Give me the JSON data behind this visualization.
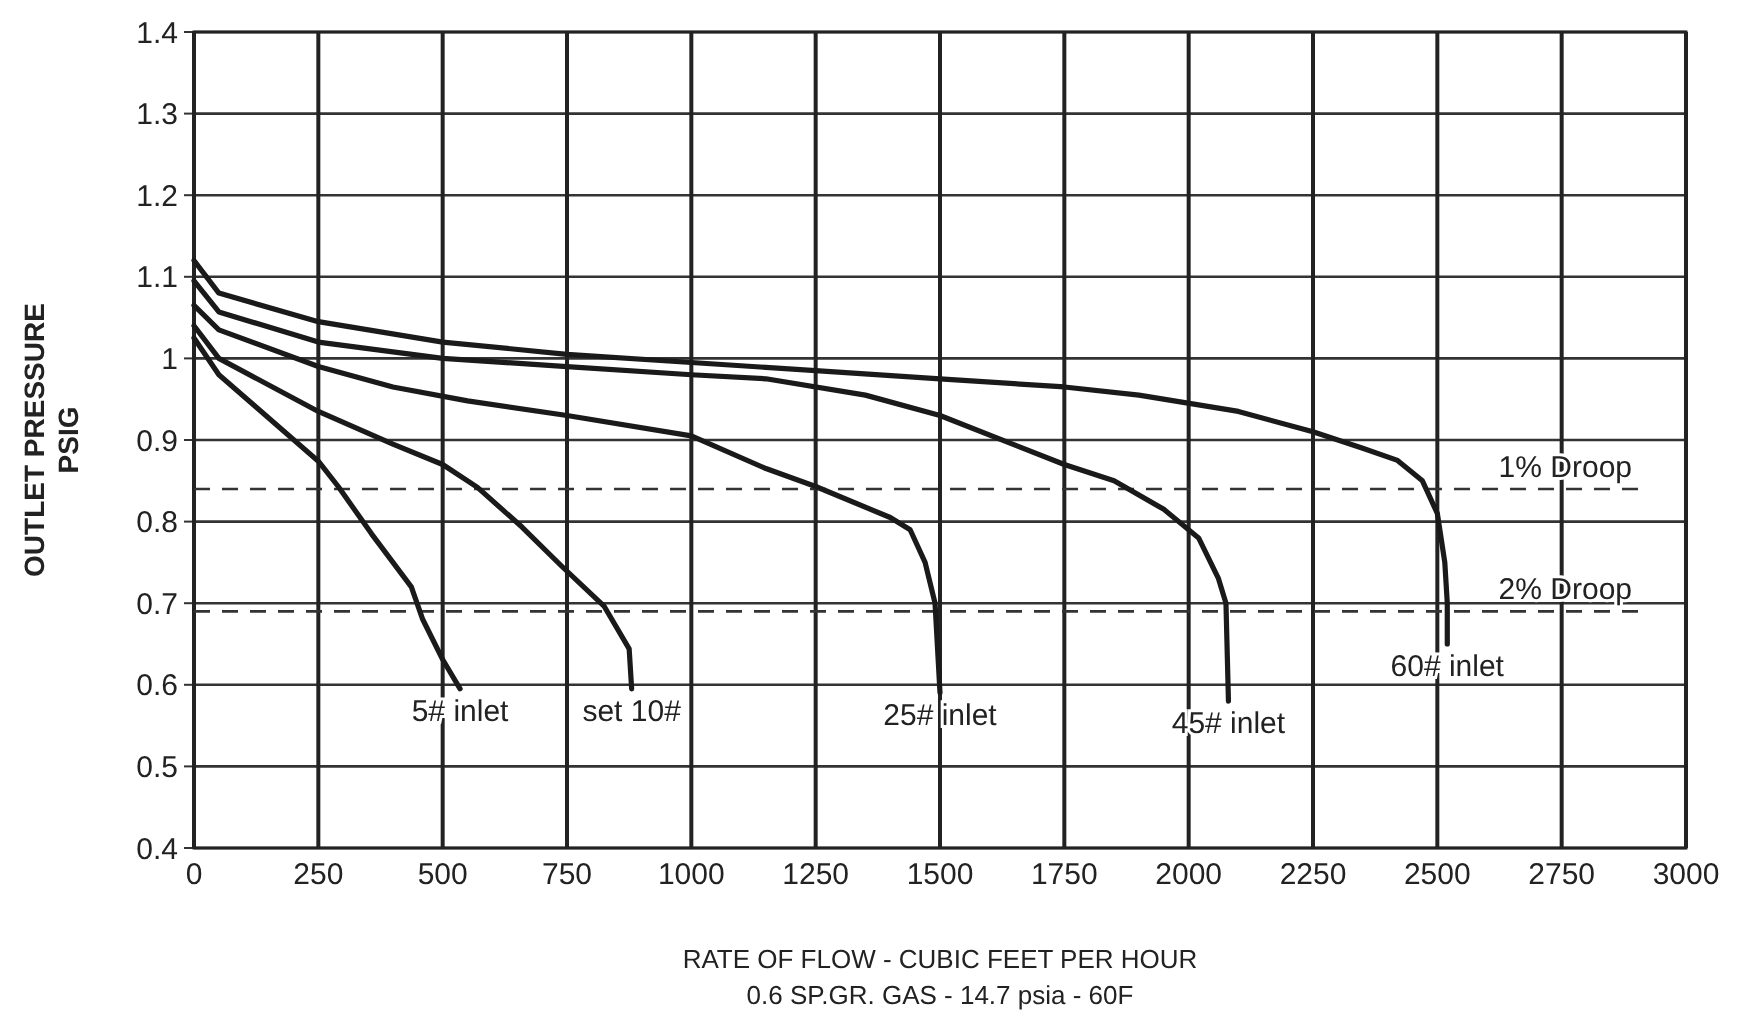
{
  "chart_data": {
    "type": "line",
    "xlabel": "RATE OF FLOW - CUBIC FEET PER HOUR",
    "ylabel": "OUTLET PRESSURE\nPSIG",
    "annotations": [
      "0.6 SP.GR. GAS - 14.7 psia - 60F"
    ],
    "xlim": [
      0,
      3000
    ],
    "ylim": [
      0.4,
      1.4
    ],
    "xticks": [
      0,
      250,
      500,
      750,
      1000,
      1250,
      1500,
      1750,
      2000,
      2250,
      2500,
      2750,
      3000
    ],
    "yticks": [
      0.4,
      0.5,
      0.6,
      0.7,
      0.8,
      0.9,
      1,
      1.1,
      1.2,
      1.3,
      1.4
    ],
    "grid": true,
    "marker": "none",
    "line_style": "solid",
    "ref_lines": [
      {
        "axis": "y",
        "value": 0.84,
        "label": "1% Droop",
        "line_style": "dashed",
        "color": "#333333"
      },
      {
        "axis": "y",
        "value": 0.69,
        "label": "2% Droop",
        "line_style": "dashed",
        "color": "#333333"
      }
    ],
    "series": [
      {
        "name": "5# inlet",
        "color": "#1a1a1a",
        "x": [
          0,
          50,
          250,
          290,
          357,
          437,
          460,
          500,
          535
        ],
        "values": [
          1.025,
          0.98,
          0.874,
          0.843,
          0.785,
          0.72,
          0.68,
          0.631,
          0.595
        ]
      },
      {
        "name": "set 10#",
        "color": "#1a1a1a",
        "x": [
          0,
          50,
          250,
          400,
          500,
          570,
          660,
          740,
          825,
          875,
          880
        ],
        "values": [
          1.04,
          1.0,
          0.935,
          0.895,
          0.87,
          0.842,
          0.793,
          0.745,
          0.696,
          0.644,
          0.595
        ]
      },
      {
        "name": "25# inlet",
        "color": "#1a1a1a",
        "x": [
          0,
          50,
          250,
          400,
          550,
          750,
          1000,
          1150,
          1250,
          1400,
          1440,
          1470,
          1490,
          1500
        ],
        "values": [
          1.065,
          1.035,
          0.99,
          0.965,
          0.948,
          0.93,
          0.905,
          0.865,
          0.843,
          0.805,
          0.79,
          0.75,
          0.7,
          0.59
        ]
      },
      {
        "name": "45# inlet",
        "color": "#1a1a1a",
        "x": [
          0,
          50,
          250,
          500,
          750,
          1000,
          1150,
          1350,
          1500,
          1750,
          1850,
          1950,
          2020,
          2060,
          2075,
          2080
        ],
        "values": [
          1.095,
          1.057,
          1.02,
          1.0,
          0.99,
          0.98,
          0.975,
          0.955,
          0.93,
          0.87,
          0.85,
          0.815,
          0.78,
          0.73,
          0.7,
          0.58
        ]
      },
      {
        "name": "60# inlet",
        "color": "#1a1a1a",
        "x": [
          0,
          50,
          250,
          500,
          750,
          1000,
          1250,
          1500,
          1750,
          1900,
          2100,
          2250,
          2350,
          2420,
          2470,
          2500,
          2515,
          2520,
          2520
        ],
        "values": [
          1.12,
          1.08,
          1.045,
          1.02,
          1.005,
          0.995,
          0.985,
          0.975,
          0.965,
          0.955,
          0.935,
          0.91,
          0.89,
          0.875,
          0.85,
          0.81,
          0.75,
          0.7,
          0.65
        ]
      }
    ]
  }
}
